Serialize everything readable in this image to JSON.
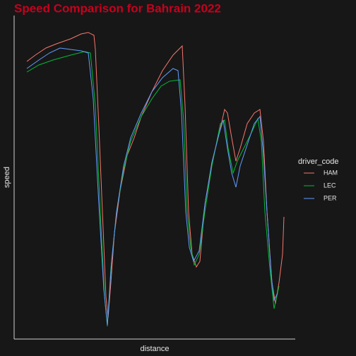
{
  "chart_data": {
    "type": "line",
    "title": "Speed Comparison for Bahrain 2022",
    "x_label": "distance",
    "y_label": "speed",
    "legend_title": "driver_code",
    "legend_position": "right",
    "xlim": [
      0,
      398
    ],
    "ylim": [
      0,
      458
    ],
    "series": [
      {
        "name": "HAM",
        "color": "#f8766d",
        "x": [
          18,
          30,
          45,
          60,
          80,
          95,
          105,
          113,
          115,
          120,
          125,
          130,
          133,
          137,
          142,
          150,
          160,
          170,
          180,
          195,
          210,
          225,
          238,
          242,
          247,
          252,
          258,
          263,
          270,
          280,
          290,
          298,
          302,
          308,
          314,
          320,
          330,
          340,
          348,
          353,
          358,
          365,
          370,
          375,
          380,
          382
        ],
        "values": [
          393,
          402,
          412,
          418,
          425,
          432,
          434,
          430,
          410,
          300,
          180,
          60,
          30,
          80,
          150,
          210,
          260,
          285,
          315,
          350,
          380,
          402,
          415,
          330,
          180,
          120,
          102,
          110,
          190,
          250,
          290,
          325,
          320,
          285,
          252,
          270,
          305,
          320,
          325,
          280,
          180,
          80,
          50,
          80,
          120,
          173
        ]
      },
      {
        "name": "LEC",
        "color": "#00ba38",
        "x": [
          18,
          35,
          55,
          80,
          100,
          108,
          115,
          122,
          128,
          132,
          137,
          145,
          155,
          165,
          180,
          195,
          208,
          220,
          235,
          240,
          245,
          250,
          255,
          262,
          270,
          280,
          292,
          298,
          303,
          310,
          316,
          325,
          335,
          345,
          350,
          355,
          362,
          368,
          375
        ],
        "values": [
          378,
          388,
          395,
          402,
          407,
          405,
          330,
          180,
          60,
          18,
          100,
          180,
          240,
          280,
          315,
          340,
          358,
          365,
          367,
          310,
          180,
          130,
          105,
          120,
          180,
          245,
          305,
          310,
          270,
          235,
          252,
          270,
          290,
          312,
          280,
          180,
          100,
          43,
          75
        ]
      },
      {
        "name": "PER",
        "color": "#619cff",
        "x": [
          18,
          35,
          50,
          65,
          80,
          95,
          105,
          112,
          120,
          127,
          132,
          138,
          145,
          155,
          165,
          180,
          195,
          210,
          225,
          232,
          237,
          243,
          248,
          254,
          262,
          270,
          280,
          290,
          296,
          302,
          308,
          314,
          320,
          330,
          340,
          348,
          353,
          358,
          364,
          368,
          373
        ],
        "values": [
          383,
          395,
          405,
          412,
          410,
          408,
          405,
          340,
          190,
          70,
          20,
          110,
          180,
          245,
          285,
          320,
          350,
          370,
          383,
          380,
          320,
          180,
          130,
          110,
          125,
          190,
          250,
          290,
          310,
          270,
          235,
          215,
          245,
          275,
          305,
          315,
          260,
          180,
          90,
          55,
          65
        ]
      }
    ]
  }
}
